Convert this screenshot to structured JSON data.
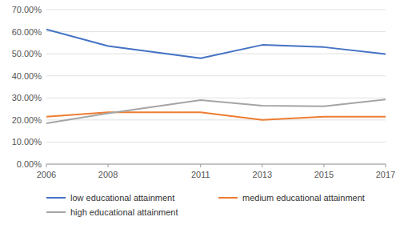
{
  "chart_data": {
    "type": "line",
    "x": [
      2006,
      2008,
      2011,
      2013,
      2015,
      2017
    ],
    "series": [
      {
        "name": "low educational attainment",
        "color": "#4472C4",
        "values": [
          0.61,
          0.535,
          0.48,
          0.54,
          0.53,
          0.499
        ]
      },
      {
        "name": "medium educational attainment",
        "color": "#ED7D31",
        "values": [
          0.215,
          0.235,
          0.235,
          0.2,
          0.215,
          0.215
        ]
      },
      {
        "name": "high educational attainment",
        "color": "#A5A5A5",
        "values": [
          0.185,
          0.23,
          0.29,
          0.265,
          0.262,
          0.293
        ]
      }
    ],
    "xlim": [
      2006,
      2017
    ],
    "xticks": [
      2006,
      2008,
      2011,
      2013,
      2015,
      2017
    ],
    "ylim": [
      0.0,
      0.7
    ],
    "yticks": [
      {
        "value": 0.0,
        "label": "0.00%"
      },
      {
        "value": 0.1,
        "label": "10.00%"
      },
      {
        "value": 0.2,
        "label": "20.00%"
      },
      {
        "value": 0.3,
        "label": "30.00%"
      },
      {
        "value": 0.4,
        "label": "40.00%"
      },
      {
        "value": 0.5,
        "label": "50.00%"
      },
      {
        "value": 0.6,
        "label": "60.00%"
      },
      {
        "value": 0.7,
        "label": "70.00%"
      }
    ],
    "grid": true,
    "legend": "bottom"
  }
}
